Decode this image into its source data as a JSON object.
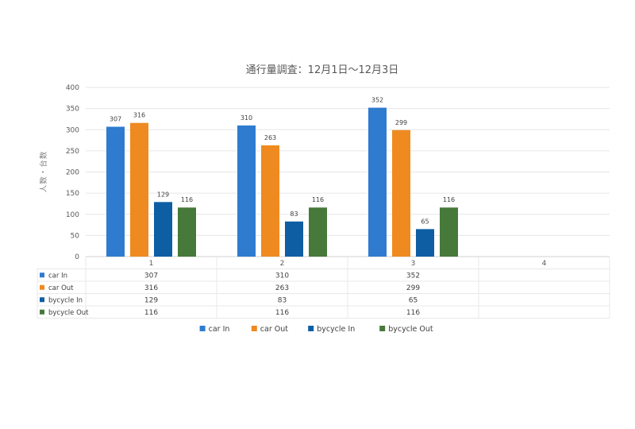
{
  "chart_data": {
    "type": "bar",
    "title": "通行量調査：12月1日〜12月3日",
    "ylabel": "人数・台数",
    "xlabel": "",
    "categories": [
      "1",
      "2",
      "3",
      "4"
    ],
    "series": [
      {
        "name": "car In",
        "color": "#2e7bcf",
        "values": [
          307,
          310,
          352,
          null
        ]
      },
      {
        "name": "car Out",
        "color": "#ef8a20",
        "values": [
          316,
          263,
          299,
          null
        ]
      },
      {
        "name": "bycycle In",
        "color": "#0e5ea3",
        "values": [
          129,
          83,
          65,
          null
        ]
      },
      {
        "name": "bycycle Out",
        "color": "#46793a",
        "values": [
          116,
          116,
          116,
          null
        ]
      }
    ],
    "ylim": [
      0,
      400
    ],
    "yticks": [
      0,
      50,
      100,
      150,
      200,
      250,
      300,
      350,
      400
    ],
    "grid": true,
    "legend": "bottom",
    "data_table": true
  }
}
